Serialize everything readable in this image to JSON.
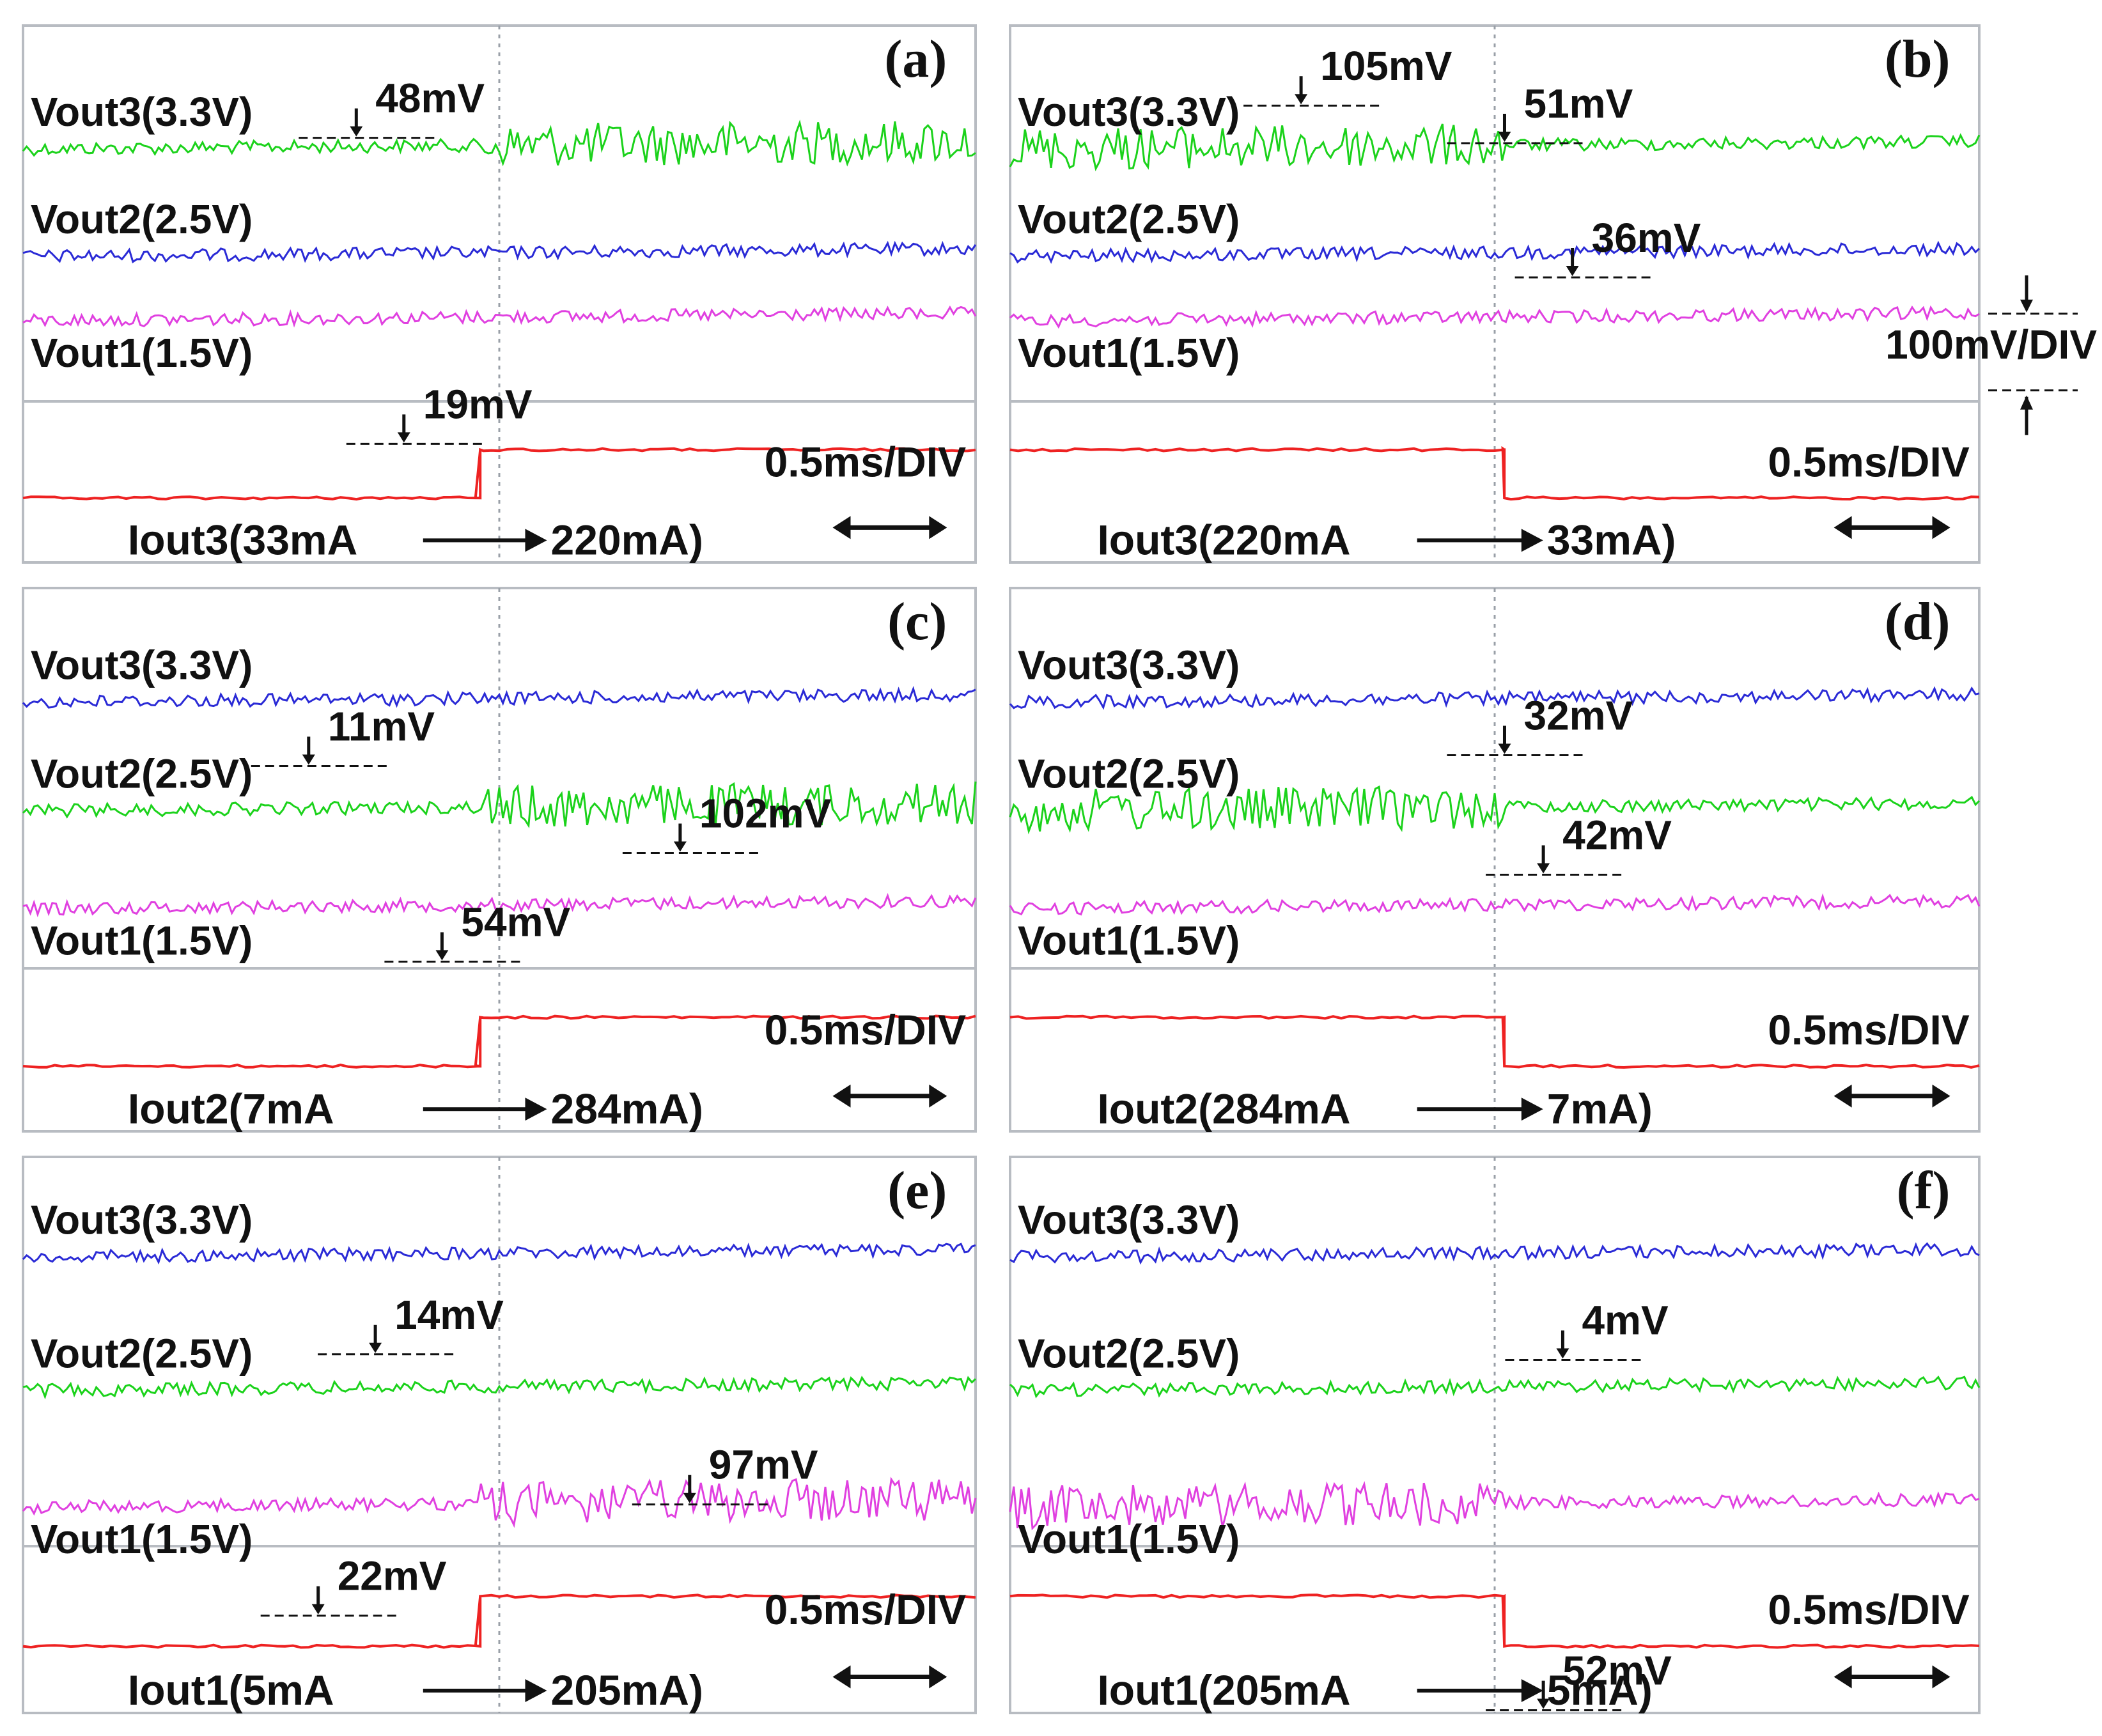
{
  "chart_data": [
    {
      "type": "line",
      "panel": "(a)",
      "time_scale": "0.5ms/DIV",
      "series": [
        {
          "name": "Vout3(3.3V)",
          "color": "#1bd21b",
          "jitter": "large_after"
        },
        {
          "name": "Vout2(2.5V)",
          "color": "#2a2ad6",
          "jitter": "medium"
        },
        {
          "name": "Vout1(1.5V)",
          "color": "#e040e0",
          "jitter": "medium"
        }
      ],
      "current": {
        "label": "Iout3(33mA",
        "arrow_target": "220mA)",
        "direction": "up"
      },
      "annotations": [
        {
          "text": "48mV",
          "trace": "Vout3(3.3V)"
        },
        {
          "text": "19mV",
          "trace": "Vout2(2.5V)"
        }
      ]
    },
    {
      "type": "line",
      "panel": "(b)",
      "time_scale": "0.5ms/DIV",
      "volt_scale": "100mV/DIV",
      "series": [
        {
          "name": "Vout3(3.3V)",
          "color": "#1bd21b",
          "jitter": "large_before"
        },
        {
          "name": "Vout2(2.5V)",
          "color": "#2a2ad6",
          "jitter": "medium"
        },
        {
          "name": "Vout1(1.5V)",
          "color": "#e040e0",
          "jitter": "medium"
        }
      ],
      "current": {
        "label": "Iout3(220mA",
        "arrow_target": "33mA)",
        "direction": "down"
      },
      "annotations": [
        {
          "text": "105mV",
          "trace": "Vout3(3.3V)"
        },
        {
          "text": "51mV",
          "trace": "Vout3(3.3V)"
        },
        {
          "text": "36mV",
          "trace": "Vout2(2.5V)"
        }
      ]
    },
    {
      "type": "line",
      "panel": "(c)",
      "time_scale": "0.5ms/DIV",
      "series": [
        {
          "name": "Vout3(3.3V)",
          "color": "#2a2ad6",
          "jitter": "medium"
        },
        {
          "name": "Vout2(2.5V)",
          "color": "#1bd21b",
          "jitter": "large_after"
        },
        {
          "name": "Vout1(1.5V)",
          "color": "#e040e0",
          "jitter": "medium"
        }
      ],
      "current": {
        "label": "Iout2(7mA",
        "arrow_target": "284mA)",
        "direction": "up"
      },
      "annotations": [
        {
          "text": "11mV",
          "trace": "Vout3(3.3V)"
        },
        {
          "text": "102mV",
          "trace": "Vout2(2.5V)"
        },
        {
          "text": "54mV",
          "trace": "Vout2(2.5V)"
        }
      ]
    },
    {
      "type": "line",
      "panel": "(d)",
      "time_scale": "0.5ms/DIV",
      "series": [
        {
          "name": "Vout3(3.3V)",
          "color": "#2a2ad6",
          "jitter": "medium"
        },
        {
          "name": "Vout2(2.5V)",
          "color": "#1bd21b",
          "jitter": "large_before"
        },
        {
          "name": "Vout1(1.5V)",
          "color": "#e040e0",
          "jitter": "medium"
        }
      ],
      "current": {
        "label": "Iout2(284mA",
        "arrow_target": "7mA)",
        "direction": "down"
      },
      "annotations": [
        {
          "text": "32mV",
          "trace": "Vout3(3.3V)"
        },
        {
          "text": "42mV",
          "trace": "Vout2(2.5V)"
        }
      ]
    },
    {
      "type": "line",
      "panel": "(e)",
      "time_scale": "0.5ms/DIV",
      "series": [
        {
          "name": "Vout3(3.3V)",
          "color": "#2a2ad6",
          "jitter": "medium"
        },
        {
          "name": "Vout2(2.5V)",
          "color": "#1bd21b",
          "jitter": "medium"
        },
        {
          "name": "Vout1(1.5V)",
          "color": "#e040e0",
          "jitter": "large_after"
        }
      ],
      "current": {
        "label": "Iout1(5mA",
        "arrow_target": "205mA)",
        "direction": "up"
      },
      "annotations": [
        {
          "text": "14mV",
          "trace": "Vout2(2.5V)"
        },
        {
          "text": "97mV",
          "trace": "Vout1(1.5V)"
        },
        {
          "text": "22mV",
          "trace": "Vout1(1.5V)"
        }
      ]
    },
    {
      "type": "line",
      "panel": "(f)",
      "time_scale": "0.5ms/DIV",
      "series": [
        {
          "name": "Vout3(3.3V)",
          "color": "#2a2ad6",
          "jitter": "medium"
        },
        {
          "name": "Vout2(2.5V)",
          "color": "#1bd21b",
          "jitter": "medium"
        },
        {
          "name": "Vout1(1.5V)",
          "color": "#e040e0",
          "jitter": "large_before"
        }
      ],
      "current": {
        "label": "Iout1(205mA",
        "arrow_target": "5mA)",
        "direction": "down"
      },
      "annotations": [
        {
          "text": "4mV",
          "trace": "Vout2(2.5V)"
        },
        {
          "text": "52mV",
          "trace": "Vout1(1.5V)"
        }
      ]
    }
  ],
  "colors": {
    "current_trace": "#ee2222",
    "grid": "#9aa0a8",
    "frame": "#b8bcc2"
  }
}
